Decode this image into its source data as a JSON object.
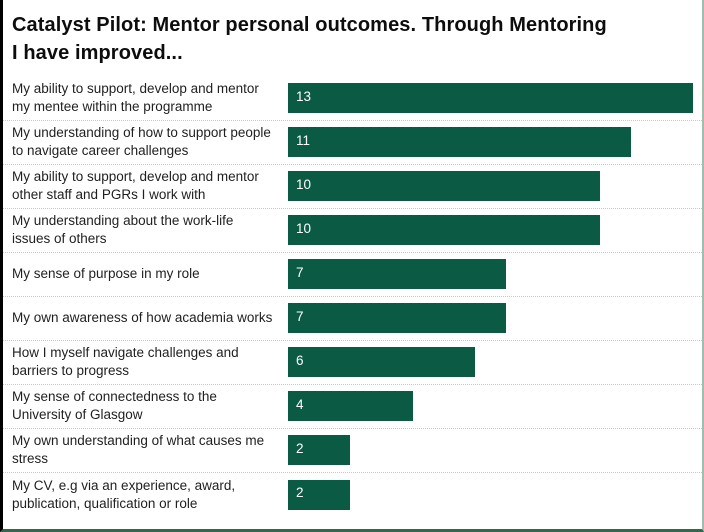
{
  "chart_data": {
    "type": "bar",
    "orientation": "horizontal",
    "title": "Catalyst Pilot: Mentor personal outcomes. Through Mentoring I have improved...",
    "categories": [
      "My ability to support, develop and mentor my mentee within the programme",
      "My understanding of how to support people to navigate career challenges",
      "My ability to support, develop and mentor other staff and PGRs I work with",
      "My understanding about the work-life issues of others",
      "My sense of purpose in my role",
      "My own awareness of how academia works",
      "How I myself navigate challenges and barriers to progress",
      "My sense of connectedness to the University of Glasgow",
      "My own understanding of what causes me stress",
      "My CV, e.g via an experience, award, publication, qualification or role"
    ],
    "values": [
      13,
      11,
      10,
      10,
      7,
      7,
      6,
      4,
      2,
      2
    ],
    "xlim": [
      0,
      13
    ],
    "max_value": 13,
    "data_labels": "inside-start",
    "grid": "off",
    "legend": "none",
    "colors": {
      "bar": "#0b5b44",
      "value_label": "#ffffff",
      "title_text": "#0d0d0d",
      "category_text": "#1f1f1f",
      "row_separator": "#c9c9c9",
      "left_border": "#000000",
      "right_border": "#a3bcab",
      "bottom_border": "#35664e",
      "background": "#ffffff"
    }
  }
}
